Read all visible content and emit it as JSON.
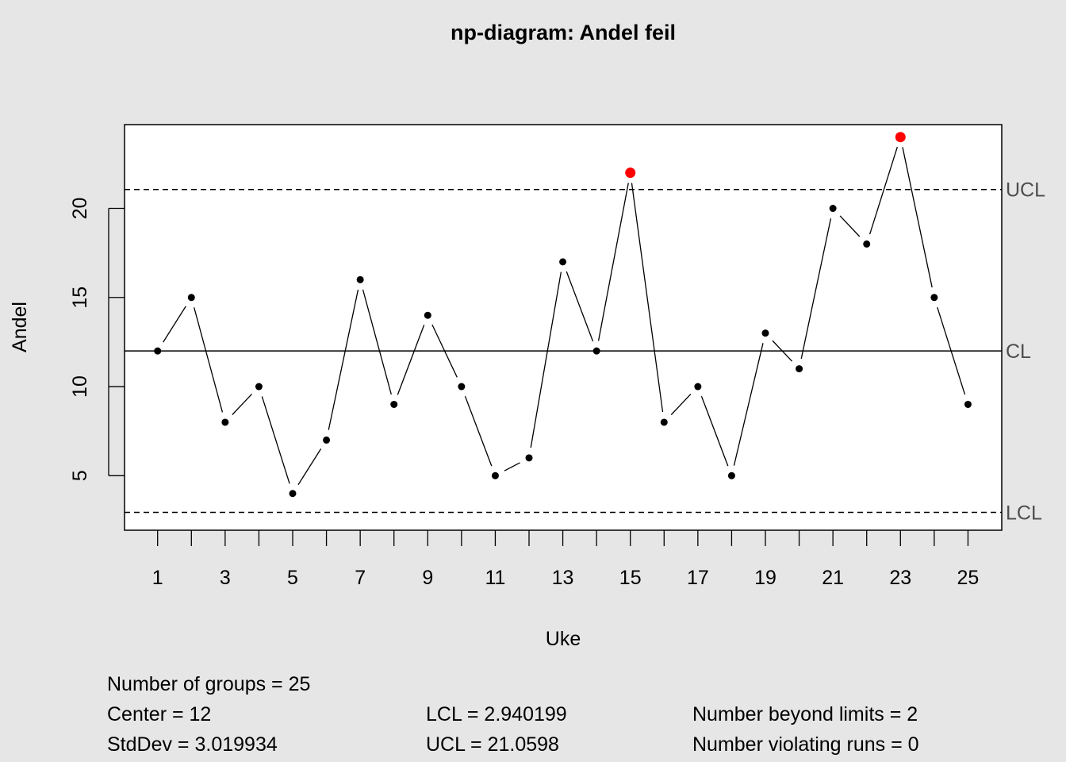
{
  "chart_data": {
    "type": "line",
    "title": "np-diagram: Andel feil",
    "xlabel": "Uke",
    "ylabel": "Andel",
    "x": [
      1,
      2,
      3,
      4,
      5,
      6,
      7,
      8,
      9,
      10,
      11,
      12,
      13,
      14,
      15,
      16,
      17,
      18,
      19,
      20,
      21,
      22,
      23,
      24,
      25
    ],
    "values": [
      12,
      15,
      8,
      10,
      4,
      7,
      16,
      9,
      14,
      10,
      5,
      6,
      17,
      12,
      22,
      8,
      10,
      5,
      13,
      11,
      20,
      18,
      24,
      15,
      9
    ],
    "x_tick_labels": [
      "1",
      "3",
      "5",
      "7",
      "9",
      "11",
      "13",
      "15",
      "17",
      "19",
      "21",
      "23",
      "25"
    ],
    "y_tick_labels": [
      "5",
      "10",
      "15",
      "20"
    ],
    "xlim": [
      0.02,
      26.0
    ],
    "ylim": [
      1.94,
      24.7
    ],
    "center": 12,
    "lcl": 2.940199,
    "ucl": 21.0598,
    "limit_labels": {
      "ucl": "UCL",
      "cl": "CL",
      "lcl": "LCL"
    },
    "out_of_control_points": [
      15,
      23
    ],
    "point_color": "#000000",
    "violation_color": "#ff0000"
  },
  "stats": {
    "col1": [
      "Number of groups = 25",
      "Center = 12",
      "StdDev = 3.019934"
    ],
    "col2": [
      "LCL = 2.940199",
      "UCL = 21.0598"
    ],
    "col3": [
      "Number beyond limits = 2",
      "Number violating runs = 0"
    ]
  }
}
